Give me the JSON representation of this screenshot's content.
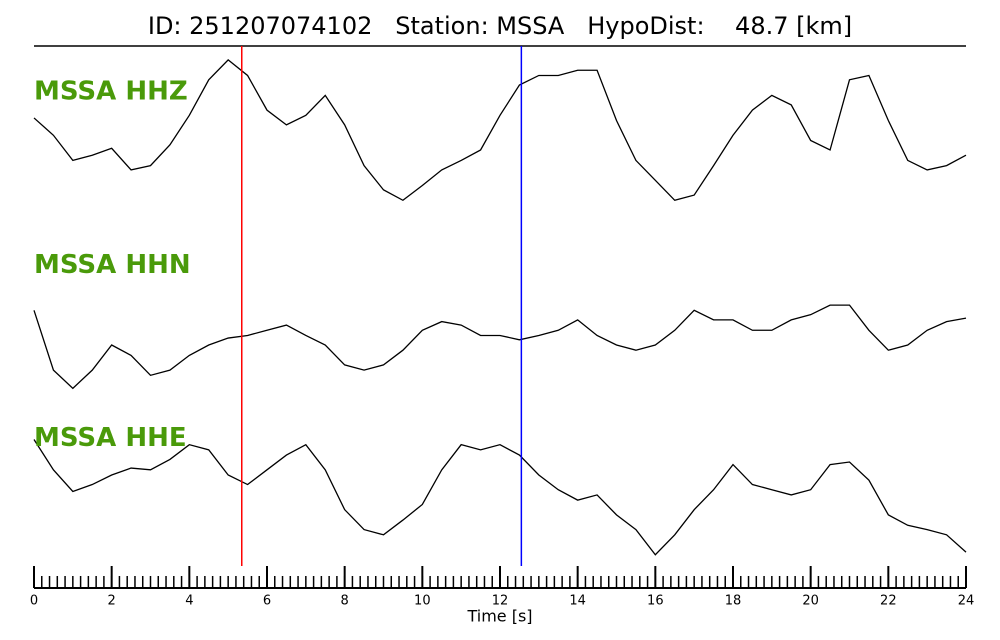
{
  "chart_data": {
    "type": "line",
    "title": "ID: 251207074102   Station: MSSA   HypoDist:    48.7 [km]",
    "x_label": "Time [s]",
    "xlim": [
      0,
      24
    ],
    "xticks": [
      0,
      2,
      4,
      6,
      8,
      10,
      12,
      14,
      16,
      18,
      20,
      22,
      24
    ],
    "xminorticks": [
      0,
      0.2,
      0.4,
      0.6,
      0.8,
      1,
      1.2,
      1.4,
      1.6,
      1.8,
      2,
      2.2,
      2.4,
      2.6,
      2.8,
      3,
      3.2,
      3.4,
      3.6,
      3.8,
      4,
      4.2,
      4.4,
      4.6,
      4.8,
      5,
      5.2,
      5.4,
      5.6,
      5.8,
      6,
      6.2,
      6.4,
      6.6,
      6.8,
      7,
      7.2,
      7.4,
      7.6,
      7.8,
      8,
      8.2,
      8.4,
      8.6,
      8.8,
      9,
      9.2,
      9.4,
      9.6,
      9.8,
      10,
      10.2,
      10.4,
      10.6,
      10.8,
      11,
      11.2,
      11.4,
      11.6,
      11.8,
      12,
      12.2,
      12.4,
      12.6,
      12.8,
      13,
      13.2,
      13.4,
      13.6,
      13.8,
      14,
      14.2,
      14.4,
      14.6,
      14.8,
      15,
      15.2,
      15.4,
      15.6,
      15.8,
      16,
      16.2,
      16.4,
      16.6,
      16.8,
      17,
      17.2,
      17.4,
      17.6,
      17.8,
      18,
      18.2,
      18.4,
      18.6,
      18.8,
      19,
      19.2,
      19.4,
      19.6,
      19.8,
      20,
      20.2,
      20.4,
      20.6,
      20.8,
      21,
      21.2,
      21.4,
      21.6,
      21.8,
      22,
      22.2,
      22.4,
      22.6,
      22.8,
      23,
      23.2,
      23.4,
      23.6,
      23.8,
      24
    ],
    "ylim": [
      -1,
      1
    ],
    "label_color": "#4a9a0a",
    "markers": [
      {
        "x": 5.35,
        "color": "#ff0000"
      },
      {
        "x": 12.55,
        "color": "#0000ff"
      }
    ],
    "x": [
      0,
      0.5,
      1,
      1.5,
      2,
      2.5,
      3,
      3.5,
      4,
      4.5,
      5,
      5.5,
      6,
      6.5,
      7,
      7.5,
      8,
      8.5,
      9,
      9.5,
      10,
      10.5,
      11,
      11.5,
      12,
      12.5,
      13,
      13.5,
      14,
      14.5,
      15,
      15.5,
      16,
      16.5,
      17,
      17.5,
      18,
      18.5,
      19,
      19.5,
      20,
      20.5,
      21,
      21.5,
      22,
      22.5,
      23,
      23.5,
      24
    ],
    "series": [
      {
        "name": "MSSA HHZ",
        "color": "#000000",
        "values": [
          0.17,
          -0.03,
          -0.32,
          -0.26,
          -0.18,
          -0.43,
          -0.38,
          -0.14,
          0.2,
          0.61,
          0.84,
          0.66,
          0.26,
          0.09,
          0.2,
          0.43,
          0.09,
          -0.38,
          -0.66,
          -0.78,
          -0.61,
          -0.43,
          -0.32,
          -0.2,
          0.2,
          0.55,
          0.66,
          0.66,
          0.72,
          0.72,
          0.14,
          -0.32,
          -0.55,
          -0.78,
          -0.72,
          -0.38,
          -0.03,
          0.26,
          0.43,
          0.32,
          -0.09,
          -0.2,
          0.61,
          0.66,
          0.14,
          -0.32,
          -0.43,
          -0.38,
          -0.26
        ]
      },
      {
        "name": "MSSA HHN",
        "color": "#000000",
        "values": [
          -0.05,
          -0.74,
          -0.95,
          -0.74,
          -0.45,
          -0.57,
          -0.8,
          -0.74,
          -0.57,
          -0.45,
          -0.37,
          -0.34,
          -0.28,
          -0.22,
          -0.34,
          -0.45,
          -0.68,
          -0.74,
          -0.68,
          -0.51,
          -0.28,
          -0.18,
          -0.22,
          -0.34,
          -0.34,
          -0.39,
          -0.34,
          -0.28,
          -0.16,
          -0.34,
          -0.45,
          -0.51,
          -0.45,
          -0.28,
          -0.05,
          -0.16,
          -0.16,
          -0.28,
          -0.28,
          -0.16,
          -0.1,
          0.01,
          0.01,
          -0.28,
          -0.51,
          -0.45,
          -0.28,
          -0.18,
          -0.14
        ]
      },
      {
        "name": "MSSA HHE",
        "color": "#000000",
        "values": [
          0.46,
          0.11,
          -0.14,
          -0.06,
          0.05,
          0.13,
          0.11,
          0.23,
          0.4,
          0.34,
          0.05,
          -0.06,
          0.11,
          0.28,
          0.4,
          0.11,
          -0.35,
          -0.58,
          -0.64,
          -0.47,
          -0.29,
          0.11,
          0.4,
          0.34,
          0.4,
          0.28,
          0.05,
          -0.12,
          -0.24,
          -0.18,
          -0.41,
          -0.58,
          -0.87,
          -0.64,
          -0.35,
          -0.12,
          0.17,
          -0.06,
          -0.12,
          -0.18,
          -0.12,
          0.17,
          0.2,
          -0.01,
          -0.41,
          -0.53,
          -0.58,
          -0.64,
          -0.84
        ]
      }
    ]
  }
}
